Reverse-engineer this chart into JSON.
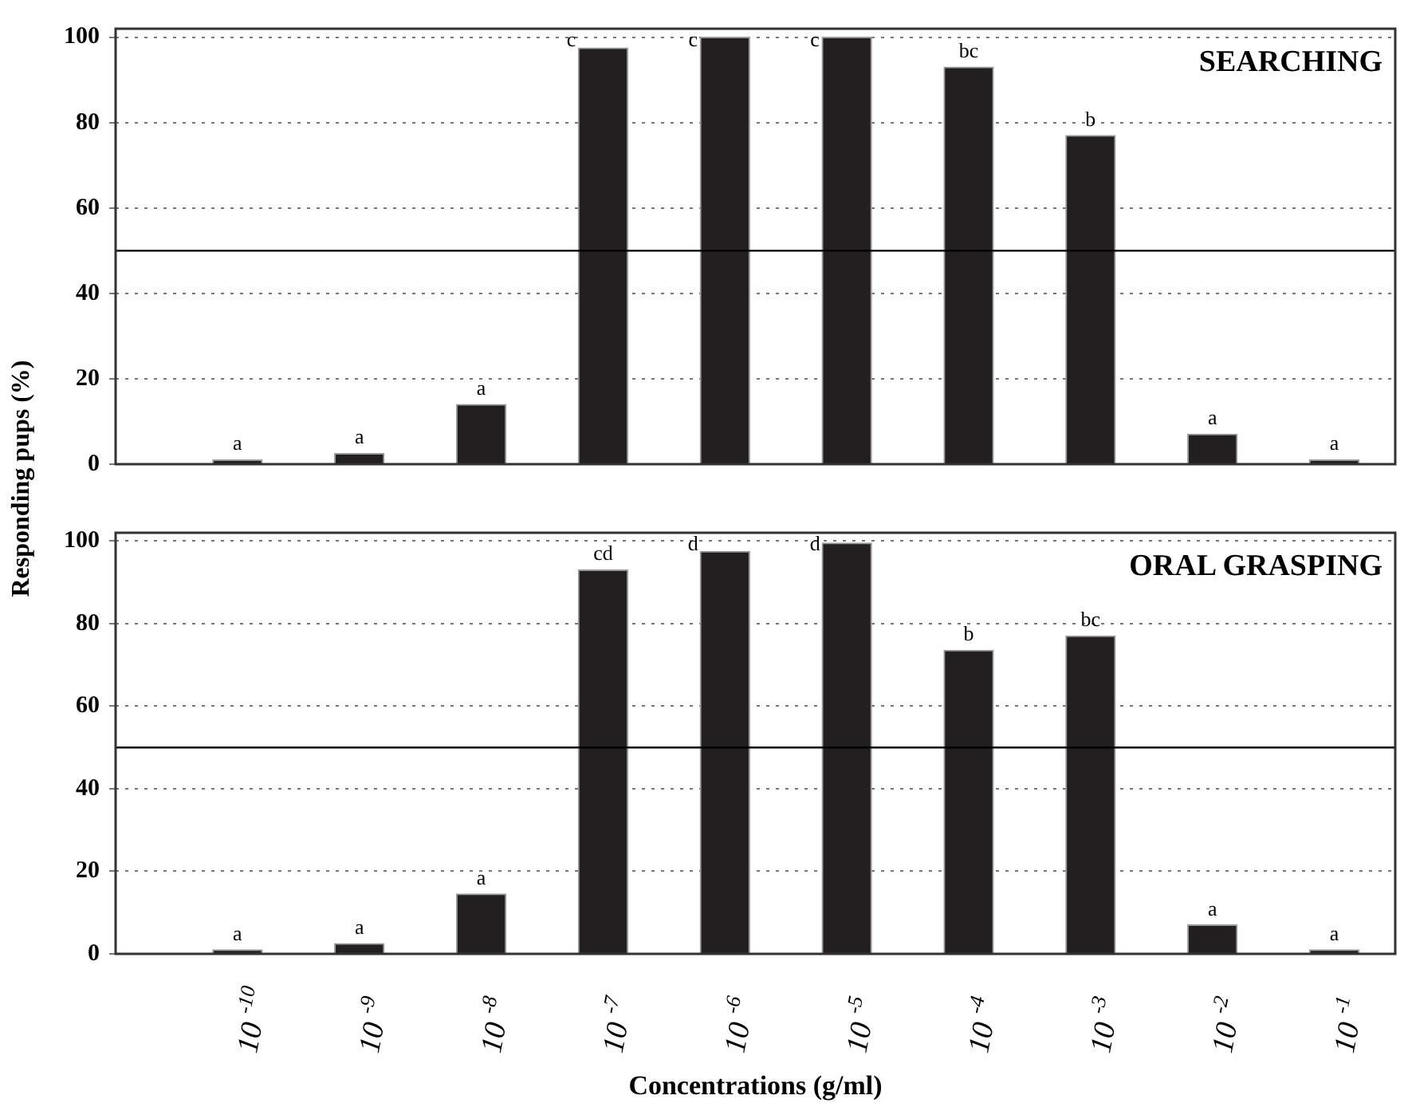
{
  "chart_data": [
    {
      "type": "bar",
      "title": "SEARCHING",
      "ylabel": "Responding pups (%)",
      "categories": [
        "10$^{-10}$",
        "10$^{-9}$",
        "10$^{-8}$",
        "10$^{-7}$",
        "10$^{-6}$",
        "10$^{-5}$",
        "10$^{-4}$",
        "10$^{-3}$",
        "10$^{-2}$",
        "10$^{-1}$"
      ],
      "values": [
        1,
        2.5,
        14,
        97.5,
        100,
        100,
        93,
        77,
        7,
        1
      ],
      "color": "#231f20",
      "ylim": [
        0,
        102
      ],
      "yticks": [
        0,
        20,
        40,
        60,
        80,
        100
      ],
      "grid": "y",
      "tick_labels": "y",
      "ref_lines": [
        {
          "axis": "y",
          "value": 50,
          "color": "#000000",
          "line_style": "solid"
        }
      ],
      "annotations": [
        {
          "text": "a",
          "x": "10$^{-10}$",
          "y": 1
        },
        {
          "text": "a",
          "x": "10$^{-9}$",
          "y": 2.5
        },
        {
          "text": "a",
          "x": "10$^{-8}$",
          "y": 14
        },
        {
          "text": "c",
          "x": "10$^{-7}$",
          "y": 97.5
        },
        {
          "text": "c",
          "x": "10$^{-6}$",
          "y": 100
        },
        {
          "text": "c",
          "x": "10$^{-5}$",
          "y": 100
        },
        {
          "text": "bc",
          "x": "10$^{-4}$",
          "y": 93
        },
        {
          "text": "b",
          "x": "10$^{-3}$",
          "y": 77
        },
        {
          "text": "a",
          "x": "10$^{-2}$",
          "y": 7
        },
        {
          "text": "a",
          "x": "10$^{-1}$",
          "y": 1
        }
      ]
    },
    {
      "type": "bar",
      "title": "ORAL GRASPING",
      "xlabel": "Concentrations (g/ml)",
      "categories": [
        "10$^{-10}$",
        "10$^{-9}$",
        "10$^{-8}$",
        "10$^{-7}$",
        "10$^{-6}$",
        "10$^{-5}$",
        "10$^{-4}$",
        "10$^{-3}$",
        "10$^{-2}$",
        "10$^{-1}$"
      ],
      "values": [
        1,
        2.5,
        14.5,
        93,
        97.5,
        99.5,
        73.5,
        77,
        7,
        1
      ],
      "color": "#231f20",
      "ylim": [
        0,
        102
      ],
      "yticks": [
        0,
        20,
        40,
        60,
        80,
        100
      ],
      "grid": "y",
      "ref_lines": [
        {
          "axis": "y",
          "value": 50,
          "color": "#000000",
          "line_style": "solid"
        }
      ],
      "annotations": [
        {
          "text": "a",
          "x": "10$^{-10}$",
          "y": 1
        },
        {
          "text": "a",
          "x": "10$^{-9}$",
          "y": 2.5
        },
        {
          "text": "a",
          "x": "10$^{-8}$",
          "y": 14.5
        },
        {
          "text": "cd",
          "x": "10$^{-7}$",
          "y": 93
        },
        {
          "text": "d",
          "x": "10$^{-6}$",
          "y": 97.5
        },
        {
          "text": "d",
          "x": "10$^{-5}$",
          "y": 99.5
        },
        {
          "text": "b",
          "x": "10$^{-4}$",
          "y": 73.5
        },
        {
          "text": "bc",
          "x": "10$^{-3}$",
          "y": 77
        },
        {
          "text": "a",
          "x": "10$^{-2}$",
          "y": 7
        },
        {
          "text": "a",
          "x": "10$^{-1}$",
          "y": 1
        }
      ]
    }
  ]
}
